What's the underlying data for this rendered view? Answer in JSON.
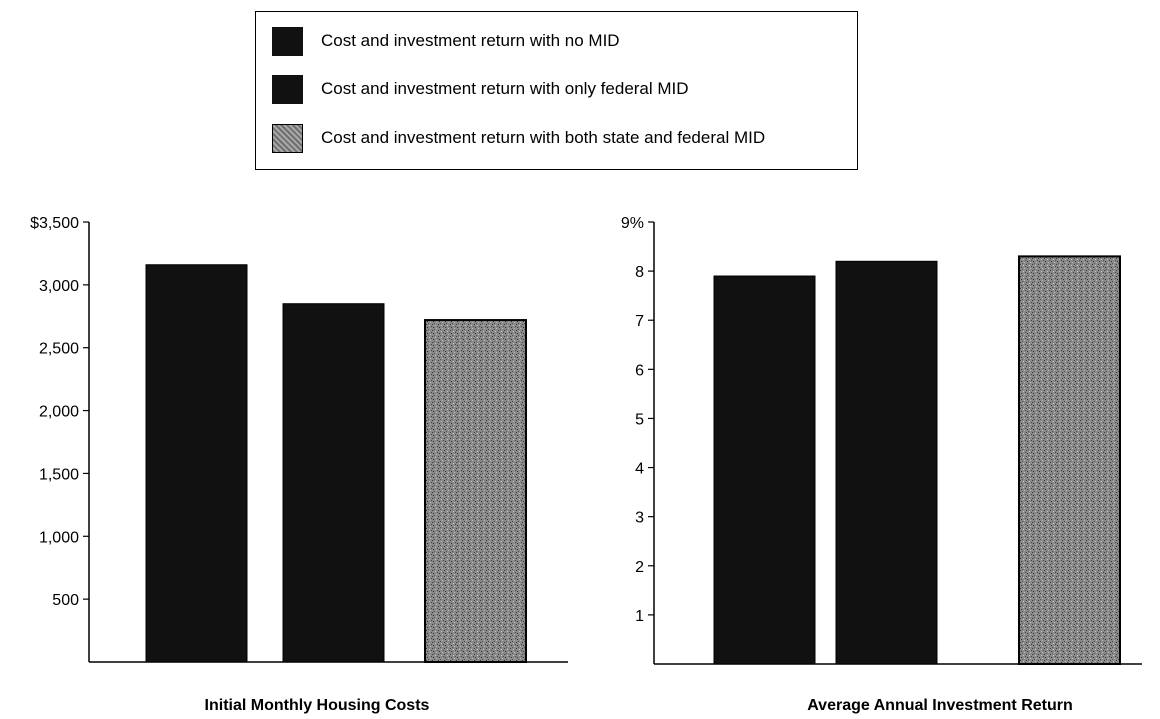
{
  "legend": {
    "items": [
      {
        "label": "Cost and investment return with no MID",
        "color": "#111111"
      },
      {
        "label": "Cost and investment return with only federal MID",
        "color": "#111111"
      },
      {
        "label": "Cost and investment return with both state and federal MID",
        "color": "#8a8a8a"
      }
    ]
  },
  "chart_data": [
    {
      "type": "bar",
      "title": "Initial Monthly Housing Costs",
      "categories": [
        "Cost and investment return with no MID",
        "Cost and investment return with only federal MID",
        "Cost and investment return with both state and federal MID"
      ],
      "values": [
        3160,
        2850,
        2720
      ],
      "ylim": [
        0,
        3500
      ],
      "yticks": [
        500,
        1000,
        1500,
        2000,
        2500,
        3000,
        3500
      ],
      "ytick_labels": [
        "500",
        "1,000",
        "1,500",
        "2,000",
        "2,500",
        "3,000",
        "$3,500"
      ],
      "xlabel": "",
      "ylabel": "",
      "colors": [
        "#111111",
        "#111111",
        "#8a8a8a"
      ]
    },
    {
      "type": "bar",
      "title": "Average Annual Investment Return",
      "categories": [
        "Cost and investment return with no MID",
        "Cost and investment return with only federal MID",
        "Cost and investment return with both state and federal MID"
      ],
      "values": [
        7.9,
        8.2,
        8.3
      ],
      "ylim": [
        0,
        9
      ],
      "yticks": [
        1,
        2,
        3,
        4,
        5,
        6,
        7,
        8,
        9
      ],
      "ytick_labels": [
        "1",
        "2",
        "3",
        "4",
        "5",
        "6",
        "7",
        "8",
        "9%"
      ],
      "xlabel": "",
      "ylabel": "",
      "colors": [
        "#111111",
        "#111111",
        "#8a8a8a"
      ]
    }
  ]
}
